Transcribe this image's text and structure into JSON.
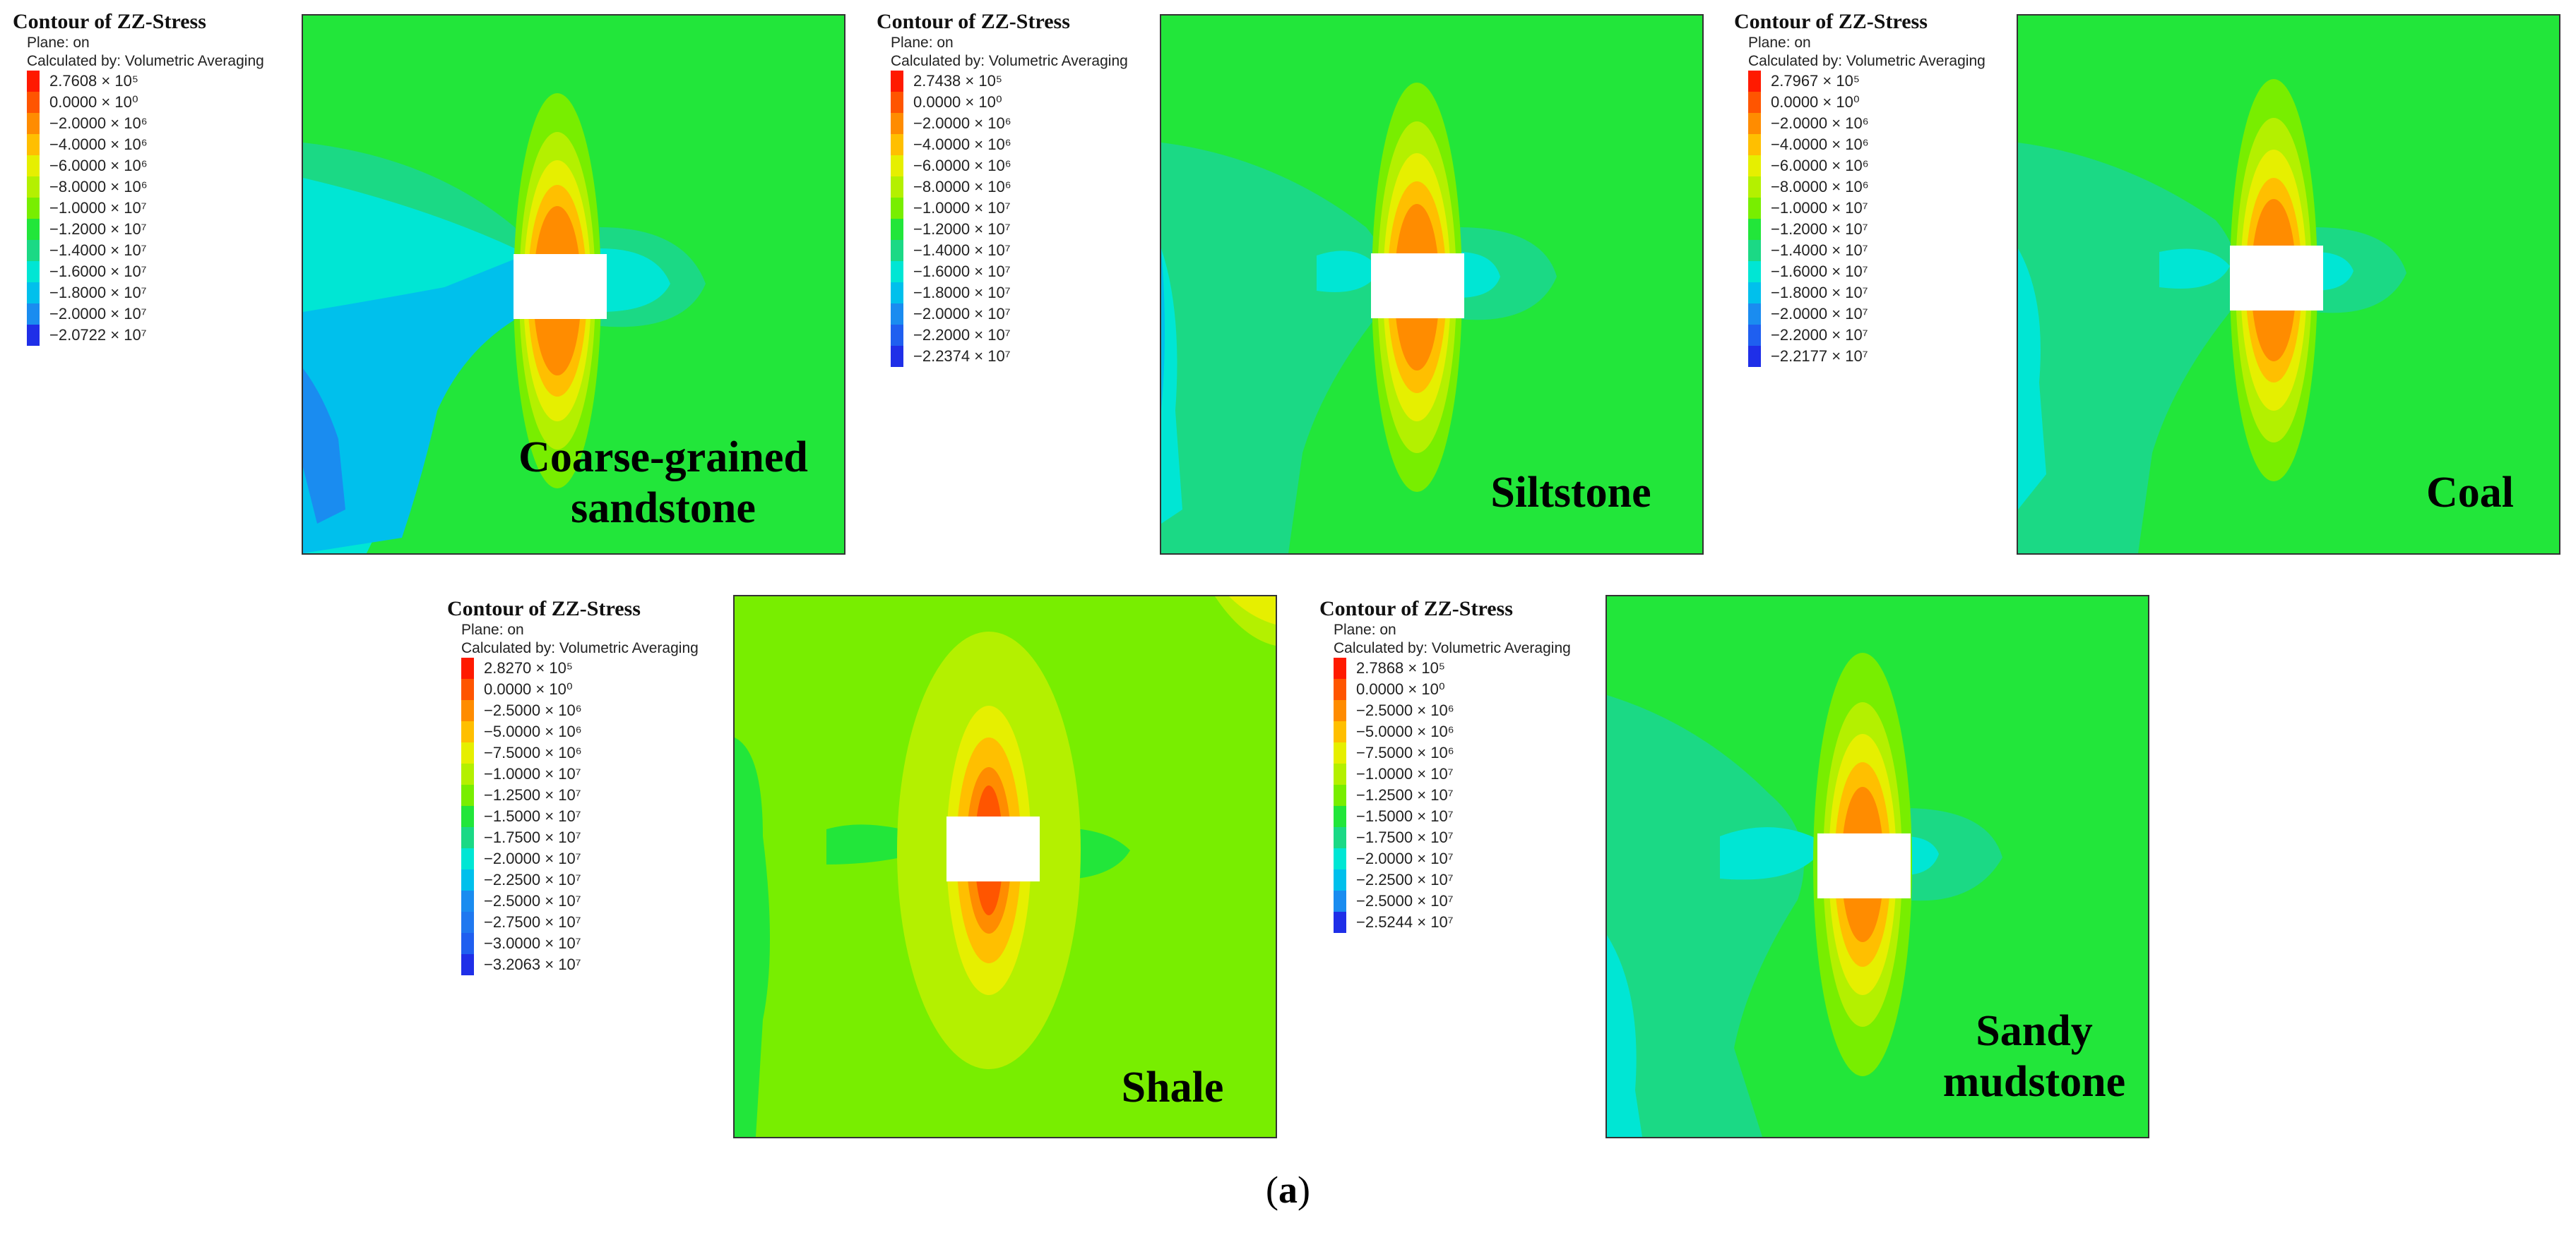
{
  "figure": {
    "caption_open": "(",
    "caption_letter": "a",
    "caption_close": ")"
  },
  "legend_title": "Contour of ZZ-Stress",
  "legend_plane": "Plane: on",
  "legend_calc": "Calculated by: Volumetric Averaging",
  "colors": {
    "c0": "#ff1a00",
    "c1": "#ff5500",
    "c2": "#ff8c00",
    "c3": "#ffbf00",
    "c4": "#e6ef00",
    "c5": "#b4f000",
    "c6": "#78ee00",
    "c7": "#22e63a",
    "c8": "#1bd985",
    "c9": "#00e6d4",
    "c10": "#00c0ec",
    "c11": "#1a8cf0",
    "c12": "#1f5ff0",
    "c13": "#1f2fe8"
  },
  "panels": [
    {
      "label_line1": "Coarse-grained",
      "label_line2": "sandstone",
      "legend": [
        "2.7608 × 10⁵",
        "0.0000 × 10⁰",
        "−2.0000 × 10⁶",
        "−4.0000 × 10⁶",
        "−6.0000 × 10⁶",
        "−8.0000 × 10⁶",
        "−1.0000 × 10⁷",
        "−1.2000 × 10⁷",
        "−1.4000 × 10⁷",
        "−1.6000 × 10⁷",
        "−1.8000 × 10⁷",
        "−2.0000 × 10⁷",
        "−2.0722 × 10⁷"
      ]
    },
    {
      "label_line1": "Siltstone",
      "label_line2": "",
      "legend": [
        "2.7438 × 10⁵",
        "0.0000 × 10⁰",
        "−2.0000 × 10⁶",
        "−4.0000 × 10⁶",
        "−6.0000 × 10⁶",
        "−8.0000 × 10⁶",
        "−1.0000 × 10⁷",
        "−1.2000 × 10⁷",
        "−1.4000 × 10⁷",
        "−1.6000 × 10⁷",
        "−1.8000 × 10⁷",
        "−2.0000 × 10⁷",
        "−2.2000 × 10⁷",
        "−2.2374 × 10⁷"
      ]
    },
    {
      "label_line1": "Coal",
      "label_line2": "",
      "legend": [
        "2.7967 × 10⁵",
        "0.0000 × 10⁰",
        "−2.0000 × 10⁶",
        "−4.0000 × 10⁶",
        "−6.0000 × 10⁶",
        "−8.0000 × 10⁶",
        "−1.0000 × 10⁷",
        "−1.2000 × 10⁷",
        "−1.4000 × 10⁷",
        "−1.6000 × 10⁷",
        "−1.8000 × 10⁷",
        "−2.0000 × 10⁷",
        "−2.2000 × 10⁷",
        "−2.2177 × 10⁷"
      ]
    },
    {
      "label_line1": "Shale",
      "label_line2": "",
      "legend": [
        "2.8270 × 10⁵",
        "0.0000 × 10⁰",
        "−2.5000 × 10⁶",
        "−5.0000 × 10⁶",
        "−7.5000 × 10⁶",
        "−1.0000 × 10⁷",
        "−1.2500 × 10⁷",
        "−1.5000 × 10⁷",
        "−1.7500 × 10⁷",
        "−2.0000 × 10⁷",
        "−2.2500 × 10⁷",
        "−2.5000 × 10⁷",
        "−2.7500 × 10⁷",
        "−3.0000 × 10⁷",
        "−3.2063 × 10⁷"
      ]
    },
    {
      "label_line1": "Sandy",
      "label_line2": "mudstone",
      "legend": [
        "2.7868 × 10⁵",
        "0.0000 × 10⁰",
        "−2.5000 × 10⁶",
        "−5.0000 × 10⁶",
        "−7.5000 × 10⁶",
        "−1.0000 × 10⁷",
        "−1.2500 × 10⁷",
        "−1.5000 × 10⁷",
        "−1.7500 × 10⁷",
        "−2.0000 × 10⁷",
        "−2.2500 × 10⁷",
        "−2.5000 × 10⁷",
        "−2.5244 × 10⁷"
      ]
    }
  ]
}
